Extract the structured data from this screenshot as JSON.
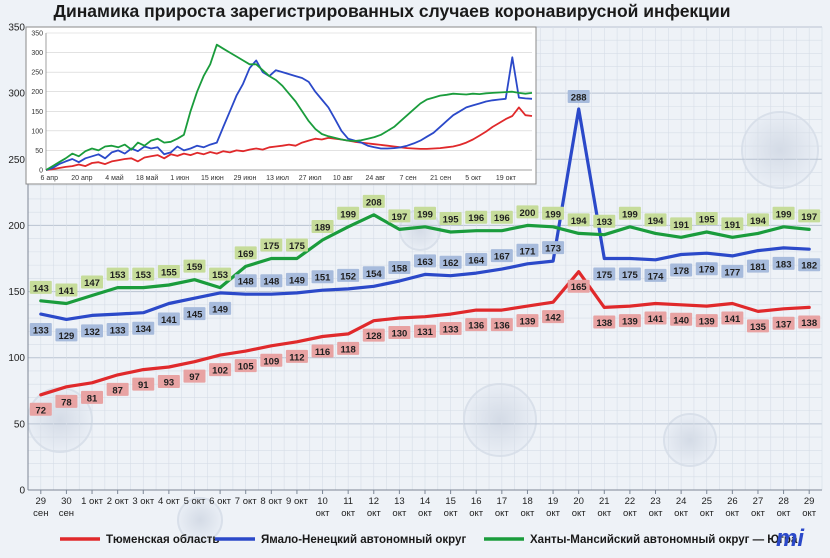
{
  "chart_data": [
    {
      "type": "line",
      "title": "Динамика прироста зарегистрированных случаев коронавирусной инфекции",
      "ylim": [
        0,
        350
      ],
      "yticks": [
        0,
        50,
        100,
        150,
        200,
        250,
        300,
        350
      ],
      "grid": true,
      "legend": "bottom",
      "categories": [
        [
          "29",
          "сен"
        ],
        [
          "30",
          "сен"
        ],
        [
          "1 окт"
        ],
        [
          "2 окт"
        ],
        [
          "3 окт"
        ],
        [
          "4 окт"
        ],
        [
          "5 окт"
        ],
        [
          "6 окт"
        ],
        [
          "7 окт"
        ],
        [
          "8 окт"
        ],
        [
          "9 окт"
        ],
        [
          "10",
          "окт"
        ],
        [
          "11",
          "окт"
        ],
        [
          "12",
          "окт"
        ],
        [
          "13",
          "окт"
        ],
        [
          "14",
          "окт"
        ],
        [
          "15",
          "окт"
        ],
        [
          "16",
          "окт"
        ],
        [
          "17",
          "окт"
        ],
        [
          "18",
          "окт"
        ],
        [
          "19",
          "окт"
        ],
        [
          "20",
          "окт"
        ],
        [
          "21",
          "окт"
        ],
        [
          "22",
          "окт"
        ],
        [
          "23",
          "окт"
        ],
        [
          "24",
          "окт"
        ],
        [
          "25",
          "окт"
        ],
        [
          "26",
          "окт"
        ],
        [
          "27",
          "окт"
        ],
        [
          "28",
          "окт"
        ],
        [
          "29",
          "окт"
        ]
      ],
      "series": [
        {
          "name": "Тюменская область",
          "color": "#e0292b",
          "label_bg": "#e8a3a3",
          "values": [
            72,
            78,
            81,
            87,
            91,
            93,
            97,
            102,
            105,
            109,
            112,
            116,
            118,
            128,
            130,
            131,
            133,
            136,
            136,
            139,
            142,
            165,
            138,
            139,
            141,
            140,
            139,
            141,
            135,
            137,
            138
          ]
        },
        {
          "name": "Ямало-Ненецкий автономный округ",
          "color": "#2b49c9",
          "label_bg": "#a7bbdc",
          "values": [
            133,
            129,
            132,
            133,
            134,
            141,
            145,
            149,
            148,
            148,
            149,
            151,
            152,
            154,
            158,
            163,
            162,
            164,
            167,
            171,
            173,
            288,
            175,
            175,
            174,
            178,
            179,
            177,
            181,
            183,
            182
          ]
        },
        {
          "name": "Ханты-Мансийский автономный округ — Югра",
          "color": "#1a9c3c",
          "label_bg": "#c6dc9a",
          "values": [
            143,
            141,
            147,
            153,
            153,
            155,
            159,
            153,
            169,
            175,
            175,
            189,
            199,
            208,
            197,
            199,
            195,
            196,
            196,
            200,
            199,
            194,
            193,
            199,
            194,
            191,
            195,
            191,
            194,
            199,
            197
          ]
        }
      ]
    },
    {
      "type": "line",
      "ylim": [
        0,
        350
      ],
      "yticks": [
        0,
        50,
        100,
        150,
        200,
        250,
        300,
        350
      ],
      "xticks": [
        "6 апр",
        "20 апр",
        "4 май",
        "18 май",
        "1 июн",
        "15 июн",
        "29 июн",
        "13 июл",
        "27 июл",
        "10 авг",
        "24 авг",
        "7 сен",
        "21 сен",
        "5 окт",
        "19 окт"
      ],
      "grid": true,
      "series": [
        {
          "color": "#e0292b",
          "values": [
            0,
            2,
            5,
            8,
            10,
            14,
            10,
            18,
            20,
            15,
            22,
            25,
            28,
            30,
            22,
            32,
            35,
            38,
            30,
            40,
            36,
            42,
            38,
            44,
            40,
            46,
            42,
            48,
            45,
            50,
            48,
            52,
            55,
            52,
            58,
            60,
            62,
            65,
            62,
            70,
            75,
            80,
            78,
            82,
            80,
            78,
            75,
            72,
            70,
            68,
            66,
            64,
            62,
            60,
            58,
            56,
            55,
            54,
            54,
            55,
            56,
            58,
            60,
            64,
            70,
            78,
            88,
            98,
            110,
            120,
            130,
            138,
            160,
            140,
            138
          ]
        },
        {
          "color": "#2b49c9",
          "values": [
            0,
            5,
            15,
            22,
            28,
            20,
            30,
            35,
            40,
            30,
            45,
            50,
            42,
            55,
            48,
            60,
            55,
            58,
            40,
            45,
            60,
            50,
            55,
            62,
            58,
            65,
            70,
            110,
            150,
            190,
            220,
            260,
            280,
            250,
            240,
            255,
            250,
            245,
            240,
            235,
            225,
            200,
            180,
            160,
            130,
            100,
            80,
            75,
            70,
            62,
            58,
            55,
            55,
            56,
            58,
            62,
            68,
            75,
            85,
            95,
            110,
            125,
            140,
            150,
            160,
            165,
            170,
            175,
            178,
            180,
            182,
            288,
            185,
            183,
            182
          ]
        },
        {
          "color": "#1a9c3c",
          "values": [
            0,
            10,
            20,
            30,
            42,
            35,
            48,
            55,
            50,
            60,
            62,
            58,
            65,
            52,
            70,
            62,
            75,
            80,
            70,
            72,
            80,
            90,
            150,
            200,
            240,
            270,
            320,
            310,
            300,
            290,
            280,
            270,
            270,
            255,
            240,
            230,
            215,
            195,
            175,
            150,
            125,
            105,
            92,
            86,
            82,
            78,
            75,
            74,
            76,
            80,
            84,
            90,
            100,
            110,
            125,
            140,
            155,
            170,
            180,
            185,
            190,
            192,
            195,
            194,
            193,
            195,
            194,
            196,
            197,
            198,
            199,
            200,
            197,
            195,
            197
          ]
        }
      ]
    }
  ]
}
